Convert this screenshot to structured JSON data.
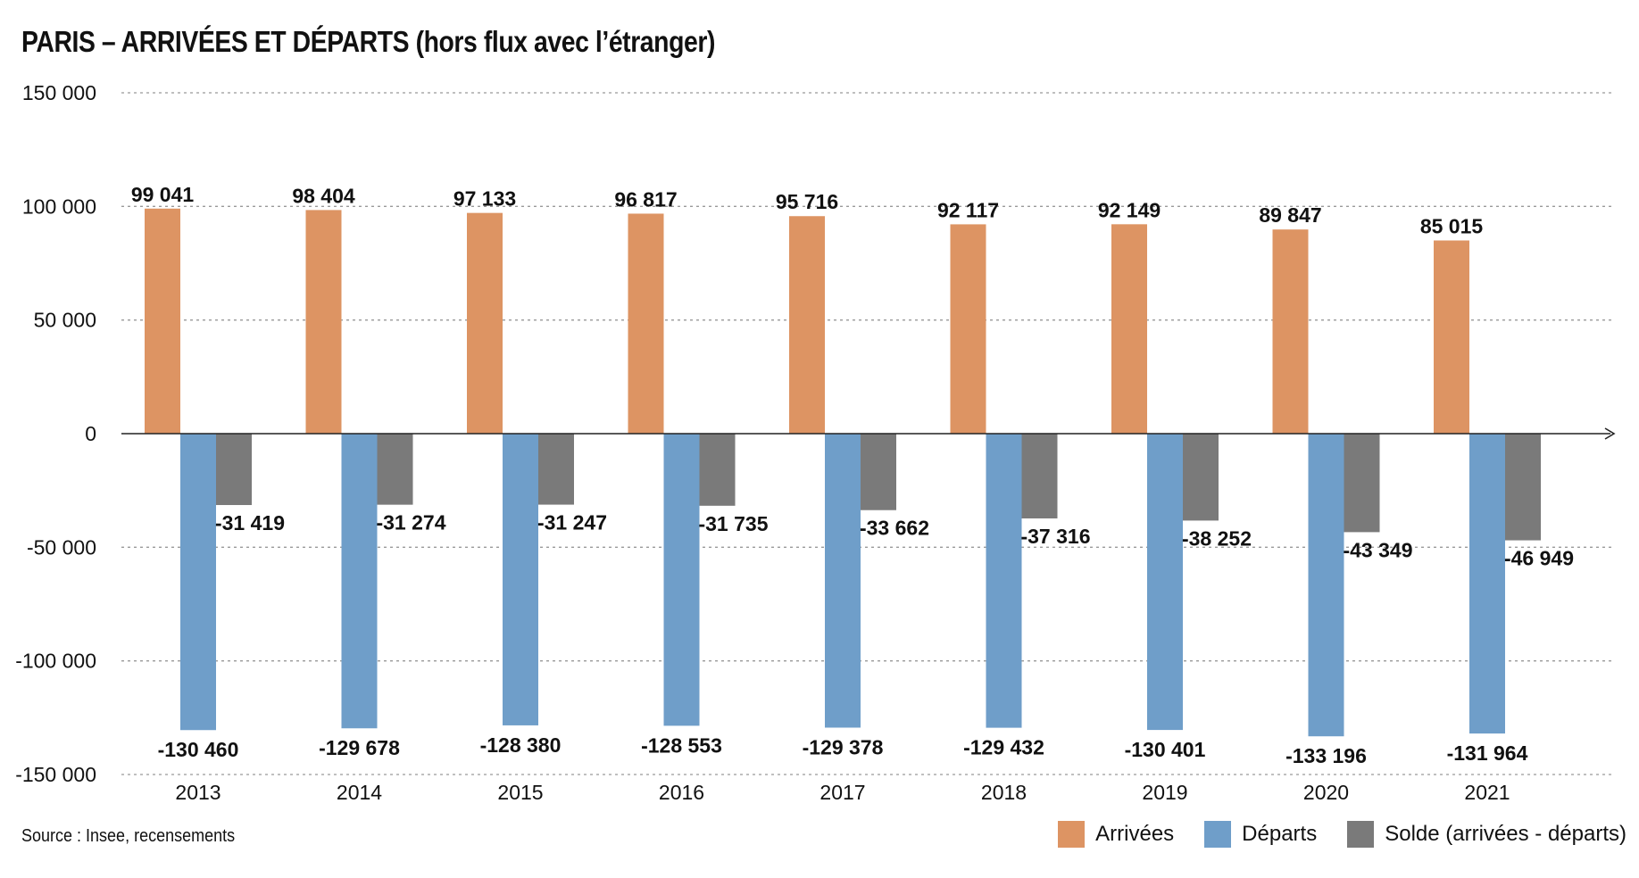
{
  "chart_data": {
    "type": "bar",
    "title": "PARIS – ARRIVÉES ET DÉPARTS (hors flux avec l’étranger)",
    "categories": [
      "2013",
      "2014",
      "2015",
      "2016",
      "2017",
      "2018",
      "2019",
      "2020",
      "2021"
    ],
    "series": [
      {
        "name": "Arrivées",
        "color": "#dd9463",
        "values": [
          99041,
          98404,
          97133,
          96817,
          95716,
          92117,
          92149,
          89847,
          85015
        ],
        "labels": [
          "99 041",
          "98 404",
          "97 133",
          "96 817",
          "95 716",
          "92 117",
          "92 149",
          "89 847",
          "85 015"
        ]
      },
      {
        "name": "Départs",
        "color": "#6f9ec9",
        "values": [
          -130460,
          -129678,
          -128380,
          -128553,
          -129378,
          -129432,
          -130401,
          -133196,
          -131964
        ],
        "labels": [
          "-130 460",
          "-129 678",
          "-128 380",
          "-128 553",
          "-129 378",
          "-129 432",
          "-130 401",
          "-133 196",
          "-131 964"
        ]
      },
      {
        "name": "Solde (arrivées - départs)",
        "color": "#7a7a7a",
        "values": [
          -31419,
          -31274,
          -31247,
          -31735,
          -33662,
          -37316,
          -38252,
          -43349,
          -46949
        ],
        "labels": [
          "-31 419",
          "-31 274",
          "-31 247",
          "-31 735",
          "-33 662",
          "-37 316",
          "-38 252",
          "-43 349",
          "-46 949"
        ]
      }
    ],
    "ylim": [
      -150000,
      150000
    ],
    "yticks": [
      150000,
      100000,
      50000,
      0,
      -50000,
      -100000,
      -150000
    ],
    "ytick_labels": [
      "150 000",
      "100 000",
      "50 000",
      "0",
      "-50 000",
      "-100 000",
      "-150 000"
    ],
    "grid": true,
    "legend": "bottom-right",
    "source": "Source : Insee, recensements"
  }
}
